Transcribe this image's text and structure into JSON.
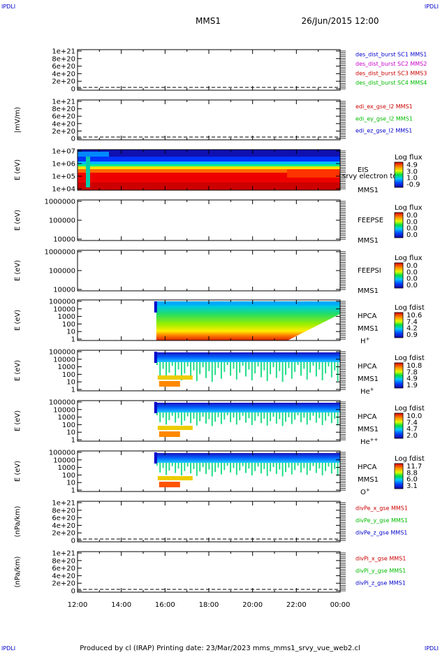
{
  "header": {
    "left_tag": "IPDLI",
    "right_tag": "IPDLI",
    "title": "MMS1",
    "datetime": "26/Jun/2015 12:00"
  },
  "footer": {
    "left_tag": "IPDLI",
    "right_tag": "IPDLI",
    "credit": "Produced by cl (IRAP)   Printing date: 23/Mar/2023   mms_mms1_srvy_vue_web2.cl"
  },
  "colors": {
    "blue": "#0000cc",
    "magenta": "#cc00cc",
    "red": "#cc0000",
    "green": "#00bb00"
  },
  "chart_data": [
    {
      "type": "line",
      "id": "dist",
      "ylabel": "",
      "yticks": [
        "1e+21",
        "8e+20",
        "6e+20",
        "4e+20",
        "2e+20",
        "0"
      ],
      "dashed_zero": true,
      "legend": [
        {
          "text": "des_dist_burst SC1 MMS1",
          "color": "blue"
        },
        {
          "text": "des_dist_burst SC2 MMS2",
          "color": "magenta"
        },
        {
          "text": "des_dist_burst SC3 MMS3",
          "color": "red"
        },
        {
          "text": "des_dist_burst SC4 MMS4",
          "color": "green"
        }
      ]
    },
    {
      "type": "line",
      "id": "edi",
      "ylabel": "|mV/m)",
      "yticks": [
        "1e+21",
        "8e+20",
        "6e+20",
        "4e+20",
        "2e+20",
        "0"
      ],
      "dashed_zero": true,
      "legend": [
        {
          "text": "edi_ex_gse_l2 MMS1",
          "color": "red"
        },
        {
          "text": "edi_ey_gse_l2 MMS1",
          "color": "green"
        },
        {
          "text": "edi_ez_gse_l2 MMS1",
          "color": "blue"
        }
      ]
    },
    {
      "type": "heatmap",
      "id": "eis",
      "ylabel": "E (eV)",
      "yticks": [
        "1e+07",
        "1e+06",
        "1e+05",
        "1e+04"
      ],
      "labels": [
        "EIS",
        "MMS1"
      ],
      "overlay": "srvy electron tof",
      "cbar_title": "Log flux",
      "cbar_values": [
        "4.9",
        "3.0",
        "1.0",
        "-0.9"
      ]
    },
    {
      "type": "heatmap",
      "id": "feepse",
      "ylabel": "E (eV)",
      "yticks": [
        "1000000",
        "100000",
        "10000"
      ],
      "labels": [
        "FEEPSE",
        "MMS1"
      ],
      "cbar_title": "Log flux",
      "cbar_values": [
        "0.0",
        "0.0",
        "0.0",
        "0.0"
      ]
    },
    {
      "type": "heatmap",
      "id": "feepsi",
      "ylabel": "E (eV)",
      "yticks": [
        "1000000",
        "100000",
        "10000"
      ],
      "labels": [
        "FEEPSI",
        "MMS1"
      ],
      "cbar_title": "Log flux",
      "cbar_values": [
        "0.0",
        "0.0",
        "0.0",
        "0.0"
      ]
    },
    {
      "type": "heatmap",
      "id": "hpca_h",
      "ylabel": "E (eV)",
      "yticks": [
        "100000",
        "10000",
        "1000",
        "100",
        "10",
        "1"
      ],
      "labels": [
        "HPCA",
        "MMS1"
      ],
      "species": "H",
      "species_sup": "+",
      "cbar_title": "Log fdist",
      "cbar_values": [
        "10.6",
        "7.4",
        "4.2",
        "0.9"
      ]
    },
    {
      "type": "heatmap",
      "id": "hpca_he",
      "ylabel": "E (eV)",
      "yticks": [
        "100000",
        "10000",
        "1000",
        "100",
        "10",
        "1"
      ],
      "labels": [
        "HPCA",
        "MMS1"
      ],
      "species": "He",
      "species_sup": "+",
      "cbar_title": "Log fdist",
      "cbar_values": [
        "10.8",
        "7.8",
        "4.9",
        "1.9"
      ]
    },
    {
      "type": "heatmap",
      "id": "hpca_hepp",
      "ylabel": "E (eV)",
      "yticks": [
        "100000",
        "10000",
        "1000",
        "100",
        "10",
        "1"
      ],
      "labels": [
        "HPCA",
        "MMS1"
      ],
      "species": "He",
      "species_sup": "++",
      "cbar_title": "Log fdist",
      "cbar_values": [
        "10.0",
        "7.4",
        "4.7",
        "2.0"
      ]
    },
    {
      "type": "heatmap",
      "id": "hpca_o",
      "ylabel": "E (eV)",
      "yticks": [
        "100000",
        "10000",
        "1000",
        "100",
        "10",
        "1"
      ],
      "labels": [
        "HPCA",
        "MMS1"
      ],
      "species": "O",
      "species_sup": "+",
      "cbar_title": "Log fdist",
      "cbar_values": [
        "11.7",
        "8.8",
        "6.0",
        "3.1"
      ]
    },
    {
      "type": "line",
      "id": "divpe",
      "ylabel": "(nPa/km)",
      "yticks": [
        "1e+21",
        "8e+20",
        "6e+20",
        "4e+20",
        "2e+20",
        "0"
      ],
      "dashed_zero": true,
      "legend": [
        {
          "text": "divPe_x_gse MMS1",
          "color": "red"
        },
        {
          "text": "divPe_y_gse MMS1",
          "color": "green"
        },
        {
          "text": "divPe_z_gse MMS1",
          "color": "blue"
        }
      ]
    },
    {
      "type": "line",
      "id": "divpi",
      "ylabel": "(nPa/km)",
      "yticks": [
        "1e+21",
        "8e+20",
        "6e+20",
        "4e+20",
        "2e+20",
        "0"
      ],
      "dashed_zero": true,
      "legend": [
        {
          "text": "divPi_x_gse MMS1",
          "color": "red"
        },
        {
          "text": "divPi_y_gse MMS1",
          "color": "green"
        },
        {
          "text": "divPi_z_gse MMS1",
          "color": "blue"
        }
      ]
    }
  ],
  "xaxis": {
    "ticks": [
      "12:00",
      "14:00",
      "16:00",
      "18:00",
      "20:00",
      "22:00",
      "00:00"
    ]
  }
}
